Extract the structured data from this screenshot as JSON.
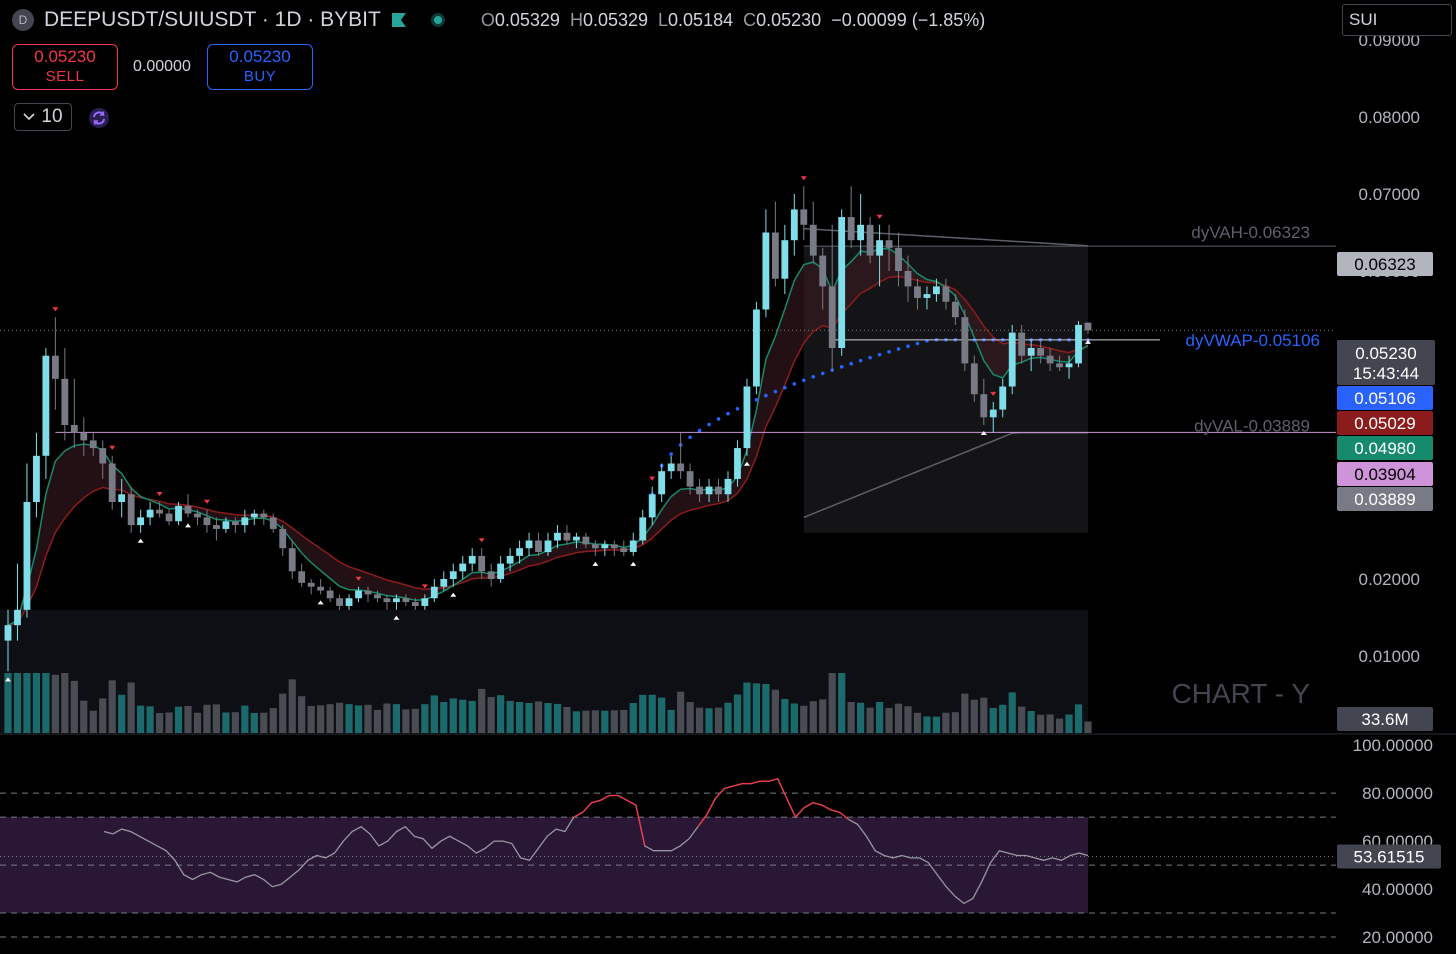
{
  "header": {
    "symbol_badge": "D",
    "title": "DEEPUSDT/SUIUSDT · 1D · BYBIT",
    "open_label": "O",
    "open": "0.05329",
    "high_label": "H",
    "high": "0.05329",
    "low_label": "L",
    "low": "0.05184",
    "close_label": "C",
    "close": "0.05230",
    "change": "−0.00099 (−1.85%)",
    "colors": {
      "bull": "#26a69a",
      "bear": "#f23645",
      "accent": "#2962ff"
    }
  },
  "trade": {
    "sell_price": "0.05230",
    "sell_label": "SELL",
    "spread": "0.00000",
    "buy_price": "0.05230",
    "buy_label": "BUY",
    "quantity": "10"
  },
  "search": {
    "value": "SUI"
  },
  "watermark": "CHART - Y",
  "chart_data": [
    {
      "type": "candlestick",
      "ylim": [
        0.0,
        0.09
      ],
      "yticks": [
        "0.09000",
        "0.08000",
        "0.07000",
        "0.06000",
        "0.05000",
        "0.04000",
        "0.03000",
        "0.02000",
        "0.01000"
      ],
      "volume_label": "33.6M",
      "candles": [
        [
          0.012,
          0.016,
          0.008,
          0.014
        ],
        [
          0.014,
          0.022,
          0.012,
          0.016
        ],
        [
          0.016,
          0.035,
          0.015,
          0.03
        ],
        [
          0.03,
          0.039,
          0.028,
          0.036
        ],
        [
          0.036,
          0.05,
          0.033,
          0.049
        ],
        [
          0.049,
          0.054,
          0.042,
          0.046
        ],
        [
          0.046,
          0.05,
          0.038,
          0.04
        ],
        [
          0.04,
          0.046,
          0.037,
          0.039
        ],
        [
          0.039,
          0.041,
          0.036,
          0.038
        ],
        [
          0.038,
          0.039,
          0.036,
          0.037
        ],
        [
          0.037,
          0.038,
          0.033,
          0.035
        ],
        [
          0.035,
          0.036,
          0.029,
          0.03
        ],
        [
          0.03,
          0.033,
          0.028,
          0.031
        ],
        [
          0.031,
          0.032,
          0.026,
          0.027
        ],
        [
          0.027,
          0.029,
          0.026,
          0.028
        ],
        [
          0.028,
          0.03,
          0.027,
          0.029
        ],
        [
          0.029,
          0.03,
          0.028,
          0.0285
        ],
        [
          0.0285,
          0.029,
          0.027,
          0.0275
        ],
        [
          0.0275,
          0.03,
          0.027,
          0.0295
        ],
        [
          0.0295,
          0.031,
          0.028,
          0.0285
        ],
        [
          0.0285,
          0.029,
          0.027,
          0.028
        ],
        [
          0.028,
          0.029,
          0.026,
          0.027
        ],
        [
          0.027,
          0.028,
          0.025,
          0.0265
        ],
        [
          0.0265,
          0.028,
          0.026,
          0.0275
        ],
        [
          0.0275,
          0.028,
          0.026,
          0.027
        ],
        [
          0.027,
          0.029,
          0.026,
          0.028
        ],
        [
          0.028,
          0.029,
          0.027,
          0.0285
        ],
        [
          0.0285,
          0.029,
          0.027,
          0.028
        ],
        [
          0.028,
          0.0285,
          0.026,
          0.0265
        ],
        [
          0.0265,
          0.027,
          0.023,
          0.024
        ],
        [
          0.024,
          0.025,
          0.02,
          0.021
        ],
        [
          0.021,
          0.022,
          0.019,
          0.0195
        ],
        [
          0.0195,
          0.02,
          0.018,
          0.019
        ],
        [
          0.019,
          0.02,
          0.018,
          0.0185
        ],
        [
          0.0185,
          0.019,
          0.017,
          0.0175
        ],
        [
          0.0175,
          0.018,
          0.016,
          0.0165
        ],
        [
          0.0165,
          0.018,
          0.016,
          0.0175
        ],
        [
          0.0175,
          0.019,
          0.017,
          0.0185
        ],
        [
          0.0185,
          0.019,
          0.017,
          0.018
        ],
        [
          0.018,
          0.0185,
          0.017,
          0.0175
        ],
        [
          0.0175,
          0.018,
          0.016,
          0.017
        ],
        [
          0.017,
          0.018,
          0.016,
          0.0175
        ],
        [
          0.0175,
          0.018,
          0.0165,
          0.017
        ],
        [
          0.017,
          0.0175,
          0.016,
          0.0165
        ],
        [
          0.0165,
          0.018,
          0.016,
          0.0175
        ],
        [
          0.0175,
          0.02,
          0.017,
          0.019
        ],
        [
          0.019,
          0.021,
          0.0185,
          0.02
        ],
        [
          0.02,
          0.022,
          0.019,
          0.021
        ],
        [
          0.021,
          0.023,
          0.02,
          0.022
        ],
        [
          0.022,
          0.024,
          0.021,
          0.023
        ],
        [
          0.023,
          0.024,
          0.02,
          0.021
        ],
        [
          0.021,
          0.022,
          0.019,
          0.02
        ],
        [
          0.02,
          0.023,
          0.0195,
          0.022
        ],
        [
          0.022,
          0.024,
          0.021,
          0.023
        ],
        [
          0.023,
          0.025,
          0.022,
          0.024
        ],
        [
          0.024,
          0.026,
          0.023,
          0.025
        ],
        [
          0.025,
          0.026,
          0.023,
          0.0235
        ],
        [
          0.0235,
          0.026,
          0.023,
          0.025
        ],
        [
          0.025,
          0.027,
          0.024,
          0.026
        ],
        [
          0.026,
          0.027,
          0.0245,
          0.025
        ],
        [
          0.025,
          0.026,
          0.024,
          0.0255
        ],
        [
          0.0255,
          0.026,
          0.024,
          0.0245
        ],
        [
          0.0245,
          0.025,
          0.023,
          0.024
        ],
        [
          0.024,
          0.025,
          0.023,
          0.0245
        ],
        [
          0.0245,
          0.025,
          0.023,
          0.024
        ],
        [
          0.024,
          0.025,
          0.023,
          0.0235
        ],
        [
          0.0235,
          0.026,
          0.023,
          0.025
        ],
        [
          0.025,
          0.029,
          0.0245,
          0.028
        ],
        [
          0.028,
          0.032,
          0.027,
          0.031
        ],
        [
          0.031,
          0.035,
          0.03,
          0.034
        ],
        [
          0.034,
          0.036,
          0.033,
          0.035
        ],
        [
          0.035,
          0.039,
          0.033,
          0.034
        ],
        [
          0.034,
          0.035,
          0.031,
          0.032
        ],
        [
          0.032,
          0.033,
          0.03,
          0.031
        ],
        [
          0.031,
          0.033,
          0.03,
          0.032
        ],
        [
          0.032,
          0.033,
          0.03,
          0.031
        ],
        [
          0.031,
          0.034,
          0.03,
          0.033
        ],
        [
          0.033,
          0.038,
          0.032,
          0.037
        ],
        [
          0.037,
          0.046,
          0.036,
          0.045
        ],
        [
          0.045,
          0.056,
          0.044,
          0.055
        ],
        [
          0.055,
          0.068,
          0.054,
          0.065
        ],
        [
          0.065,
          0.069,
          0.058,
          0.059
        ],
        [
          0.059,
          0.066,
          0.057,
          0.064
        ],
        [
          0.064,
          0.07,
          0.062,
          0.068
        ],
        [
          0.068,
          0.071,
          0.064,
          0.066
        ],
        [
          0.066,
          0.069,
          0.061,
          0.062
        ],
        [
          0.062,
          0.063,
          0.055,
          0.058
        ],
        [
          0.058,
          0.066,
          0.047,
          0.05
        ],
        [
          0.05,
          0.068,
          0.049,
          0.067
        ],
        [
          0.067,
          0.071,
          0.063,
          0.064
        ],
        [
          0.064,
          0.07,
          0.062,
          0.066
        ],
        [
          0.066,
          0.067,
          0.061,
          0.062
        ],
        [
          0.062,
          0.066,
          0.058,
          0.064
        ],
        [
          0.064,
          0.066,
          0.06,
          0.063
        ],
        [
          0.063,
          0.065,
          0.058,
          0.06
        ],
        [
          0.06,
          0.062,
          0.056,
          0.058
        ],
        [
          0.058,
          0.059,
          0.055,
          0.0565
        ],
        [
          0.0565,
          0.058,
          0.055,
          0.057
        ],
        [
          0.057,
          0.059,
          0.056,
          0.058
        ],
        [
          0.058,
          0.059,
          0.055,
          0.056
        ],
        [
          0.056,
          0.057,
          0.053,
          0.054
        ],
        [
          0.054,
          0.055,
          0.047,
          0.048
        ],
        [
          0.048,
          0.049,
          0.043,
          0.044
        ],
        [
          0.044,
          0.046,
          0.04,
          0.041
        ],
        [
          0.041,
          0.043,
          0.039,
          0.042
        ],
        [
          0.042,
          0.046,
          0.041,
          0.045
        ],
        [
          0.045,
          0.053,
          0.044,
          0.052
        ],
        [
          0.052,
          0.053,
          0.048,
          0.049
        ],
        [
          0.049,
          0.051,
          0.047,
          0.05
        ],
        [
          0.05,
          0.051,
          0.048,
          0.049
        ],
        [
          0.049,
          0.05,
          0.047,
          0.048
        ],
        [
          0.048,
          0.049,
          0.047,
          0.0475
        ],
        [
          0.0475,
          0.049,
          0.046,
          0.048
        ],
        [
          0.048,
          0.0535,
          0.0475,
          0.053
        ],
        [
          0.05329,
          0.05329,
          0.05184,
          0.0523
        ]
      ],
      "levels": {
        "vah": {
          "label": "dyVAH-0.06323",
          "value": 0.06323,
          "price": "0.06323",
          "color": "#787b86"
        },
        "vwap": {
          "label": "dyVWAP-0.05106",
          "value": 0.05106,
          "price": "0.05106",
          "color": "#2962ff"
        },
        "val": {
          "label": "dyVAL-0.03889",
          "value": 0.03889,
          "price": "0.03889",
          "color": "#787b86"
        },
        "last": {
          "value": 0.0523,
          "price": "0.05230",
          "countdown": "15:43:44",
          "color": "#434651"
        },
        "ema_slow": {
          "value": 0.05029,
          "price": "0.05029",
          "color": "#8c1c1c"
        },
        "ema_fast": {
          "value": 0.0498,
          "price": "0.04980",
          "color": "#168a6d"
        },
        "pink": {
          "value": 0.03904,
          "price": "0.03904",
          "color": "#ce93d8"
        }
      }
    },
    {
      "type": "line",
      "name": "RSI",
      "ylim": [
        15,
        103
      ],
      "yticks": [
        "100.00000",
        "80.00000",
        "60.00000",
        "40.00000",
        "20.00000"
      ],
      "current": "53.61515",
      "values": [
        64,
        63,
        65,
        64,
        62,
        60,
        58,
        56,
        52,
        46,
        44,
        46,
        47,
        45,
        44,
        43,
        45,
        46,
        44,
        41,
        42,
        45,
        48,
        52,
        54,
        53,
        55,
        60,
        64,
        66,
        63,
        58,
        60,
        64,
        66,
        62,
        61,
        57,
        60,
        62,
        60,
        58,
        55,
        57,
        60,
        60,
        59,
        53,
        52,
        57,
        62,
        65,
        64,
        70,
        72,
        76,
        77,
        79,
        79,
        77,
        75,
        58,
        56,
        56,
        56,
        58,
        61,
        66,
        71,
        78,
        82,
        83,
        84,
        84,
        85,
        85,
        86,
        78,
        70,
        74,
        76,
        75,
        73,
        72,
        69,
        67,
        62,
        56,
        54,
        53,
        54,
        53,
        53,
        51,
        46,
        41,
        37,
        34,
        36,
        43,
        51,
        56,
        55,
        54,
        54,
        53,
        52,
        53,
        52,
        54,
        55,
        54
      ]
    }
  ]
}
